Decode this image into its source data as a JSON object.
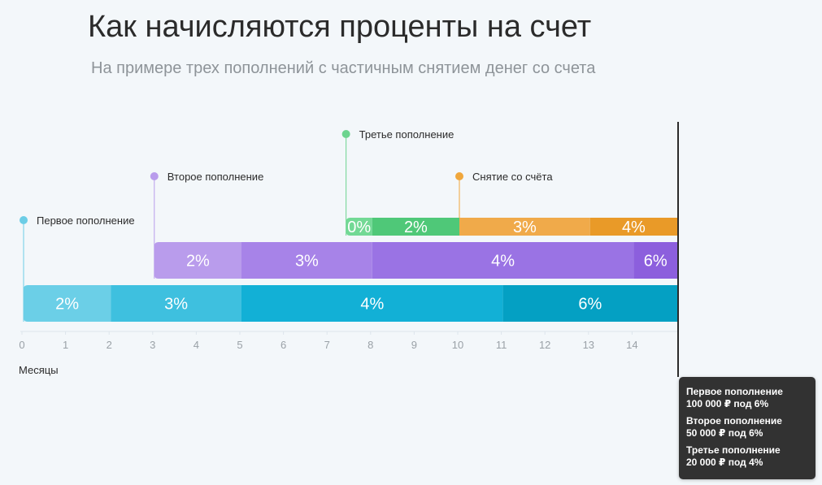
{
  "header": {
    "title": "Как начисляются проценты на счет",
    "subtitle": "На примере трех пополнений с частичным снятием денег со счета"
  },
  "chart_data": {
    "type": "bar",
    "orientation": "horizontal-timeline",
    "xlabel": "Месяцы",
    "xlim": [
      0,
      15
    ],
    "x_ticks": [
      "0",
      "1",
      "2",
      "3",
      "4",
      "5",
      "6",
      "7",
      "8",
      "9",
      "10",
      "11",
      "12",
      "13",
      "14"
    ],
    "marker_x": 15,
    "rows": [
      {
        "label": "Первое пополнение",
        "label_color": "#6ccde6",
        "start": 0,
        "segments": [
          {
            "from": 0,
            "to": 2,
            "label": "2%",
            "color": "#6bcfe7"
          },
          {
            "from": 2,
            "to": 5,
            "label": "3%",
            "color": "#3ec0df"
          },
          {
            "from": 5,
            "to": 11,
            "label": "4%",
            "color": "#12b0d6"
          },
          {
            "from": 11,
            "to": 15,
            "label": "6%",
            "color": "#04a0c3"
          }
        ]
      },
      {
        "label": "Второе пополнение",
        "label_color": "#b99cec",
        "start": 3,
        "segments": [
          {
            "from": 3,
            "to": 5,
            "label": "2%",
            "color": "#b99cec"
          },
          {
            "from": 5,
            "to": 8,
            "label": "3%",
            "color": "#a783e8"
          },
          {
            "from": 8,
            "to": 14,
            "label": "4%",
            "color": "#9a73e4"
          },
          {
            "from": 14,
            "to": 15,
            "label": "6%",
            "color": "#8c5fdd"
          }
        ]
      },
      {
        "label": "Третье пополнение",
        "label_color": "#6dd48f",
        "start": 7.4,
        "segments": [
          {
            "from": 7.4,
            "to": 8,
            "label": "0%",
            "color": "#72d995"
          },
          {
            "from": 8,
            "to": 10,
            "label": "2%",
            "color": "#4fc878"
          },
          {
            "from": 10,
            "to": 13,
            "label": "3%",
            "color": "#f0aa4a"
          },
          {
            "from": 13,
            "to": 15,
            "label": "4%",
            "color": "#e99a28"
          }
        ],
        "event": {
          "label": "Снятие со счёта",
          "x": 10,
          "color": "#f0a73c"
        }
      }
    ]
  },
  "tooltip": {
    "items": [
      {
        "name": "Первое пополнение",
        "amount": "100 000 ₽ под 6%"
      },
      {
        "name": "Второе пополнение",
        "amount": "50 000 ₽ под 6%"
      },
      {
        "name": "Третье пополнение",
        "amount": "20 000 ₽ под 4%"
      }
    ]
  }
}
